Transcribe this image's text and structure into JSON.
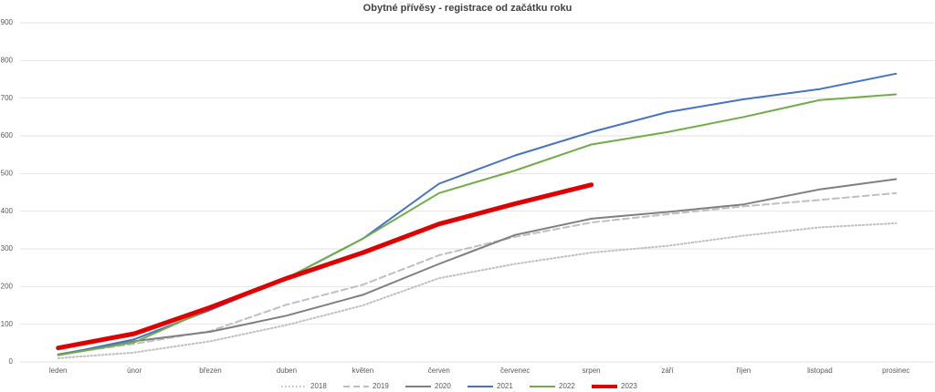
{
  "chart_data": {
    "type": "line",
    "title": "Obytné přívěsy - registrace od začátku roku",
    "categories": [
      "leden",
      "únor",
      "březen",
      "duben",
      "květen",
      "červen",
      "červenec",
      "srpen",
      "září",
      "říjen",
      "listopad",
      "prosinec"
    ],
    "ylim": [
      0,
      900
    ],
    "yticks": [
      0,
      100,
      200,
      300,
      400,
      500,
      600,
      700,
      800,
      900
    ],
    "grid": true,
    "legend": "bottom",
    "series": [
      {
        "name": "2018",
        "color": "#bfbfbf",
        "dash": "dotted",
        "width": 2,
        "values": [
          10,
          25,
          55,
          98,
          150,
          222,
          260,
          290,
          308,
          335,
          357,
          368
        ]
      },
      {
        "name": "2019",
        "color": "#bfbfbf",
        "dash": "dashed",
        "width": 2,
        "values": [
          20,
          48,
          82,
          152,
          205,
          283,
          332,
          370,
          392,
          413,
          430,
          448
        ]
      },
      {
        "name": "2020",
        "color": "#7f7f7f",
        "dash": "solid",
        "width": 2,
        "values": [
          20,
          55,
          80,
          123,
          178,
          260,
          337,
          380,
          398,
          418,
          458,
          485
        ]
      },
      {
        "name": "2021",
        "color": "#4472c4",
        "dash": "solid",
        "width": 2,
        "values": [
          18,
          60,
          138,
          222,
          327,
          473,
          548,
          610,
          663,
          697,
          724,
          765
        ]
      },
      {
        "name": "2022",
        "color": "#70ad47",
        "dash": "solid",
        "width": 2,
        "values": [
          18,
          52,
          142,
          222,
          327,
          448,
          508,
          577,
          610,
          650,
          695,
          710
        ]
      },
      {
        "name": "2023",
        "color": "#e00000",
        "dash": "solid",
        "width": 5,
        "values": [
          37,
          75,
          145,
          222,
          290,
          366,
          420,
          470,
          null,
          null,
          null,
          null
        ]
      }
    ]
  }
}
